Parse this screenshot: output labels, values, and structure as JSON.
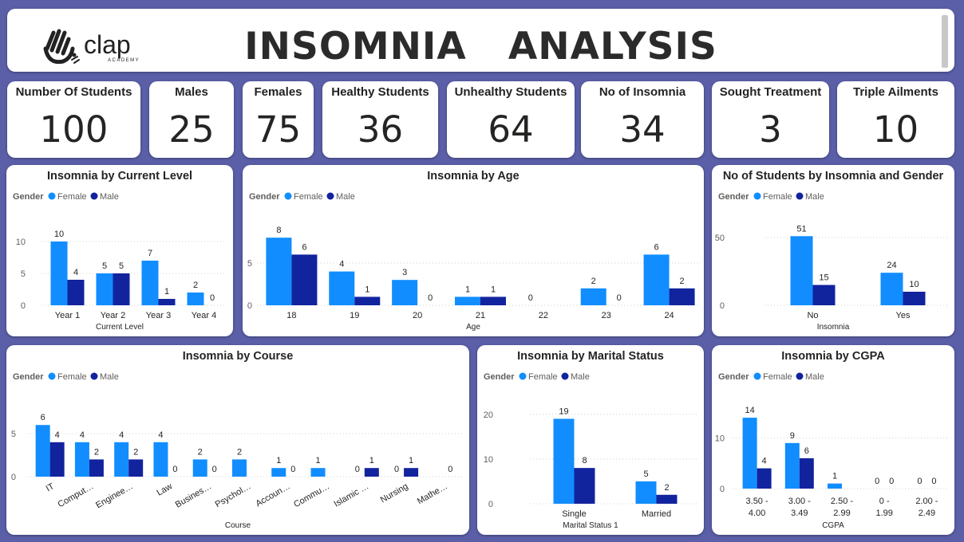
{
  "header": {
    "title": "INSOMNIA   ANALYSIS",
    "logo_text": "clap",
    "logo_subtext": "ACADEMY"
  },
  "kpis": [
    {
      "label": "Number Of Students",
      "value": "100"
    },
    {
      "label": "Males",
      "value": "25"
    },
    {
      "label": "Females",
      "value": "75"
    },
    {
      "label": "Healthy Students",
      "value": "36"
    },
    {
      "label": "Unhealthy Students",
      "value": "64"
    },
    {
      "label": "No of Insomnia",
      "value": "34"
    },
    {
      "label": "Sought Treatment",
      "value": "3"
    },
    {
      "label": "Triple Ailments",
      "value": "10"
    }
  ],
  "colors": {
    "female": "#118DFF",
    "male": "#12239E"
  },
  "legend": {
    "title": "Gender",
    "female": "Female",
    "male": "Male"
  },
  "chart_data": [
    {
      "id": "current_level",
      "type": "bar",
      "title": "Insomnia by Current Level",
      "xlabel": "Current Level",
      "ylabel": "",
      "ylim": [
        0,
        12
      ],
      "yticks": [
        0,
        5,
        10
      ],
      "categories": [
        "Year 1",
        "Year 2",
        "Year 3",
        "Year 4"
      ],
      "series": [
        {
          "name": "Female",
          "values": [
            10,
            5,
            7,
            2
          ]
        },
        {
          "name": "Male",
          "values": [
            4,
            5,
            1,
            0
          ]
        }
      ],
      "legend": "top-left",
      "grid": true
    },
    {
      "id": "age",
      "type": "bar",
      "title": "Insomnia by Age",
      "xlabel": "Age",
      "ylabel": "",
      "ylim": [
        0,
        10
      ],
      "yticks": [
        0,
        5
      ],
      "categories": [
        "18",
        "19",
        "20",
        "21",
        "22",
        "23",
        "24"
      ],
      "series": [
        {
          "name": "Female",
          "values": [
            8,
            4,
            3,
            1,
            0,
            2,
            6
          ]
        },
        {
          "name": "Male",
          "values": [
            6,
            1,
            0,
            1,
            null,
            0,
            2
          ]
        }
      ],
      "legend": "top-left",
      "grid": true
    },
    {
      "id": "gender",
      "type": "bar",
      "title": "No of Students by Insomnia and Gender",
      "xlabel": "Insomnia",
      "ylabel": "",
      "ylim": [
        0,
        60
      ],
      "yticks": [
        0,
        50
      ],
      "categories": [
        "No",
        "Yes"
      ],
      "series": [
        {
          "name": "Female",
          "values": [
            51,
            24
          ]
        },
        {
          "name": "Male",
          "values": [
            15,
            10
          ]
        }
      ],
      "legend": "top-left",
      "grid": true
    },
    {
      "id": "course",
      "type": "bar",
      "title": "Insomnia by Course",
      "xlabel": "Course",
      "ylabel": "",
      "ylim": [
        0,
        7.5
      ],
      "yticks": [
        0,
        5
      ],
      "categories": [
        "IT",
        "Comput…",
        "Enginee…",
        "Law",
        "Busines…",
        "Psychol…",
        "Accoun…",
        "Commu…",
        "Islamic …",
        "Nursing",
        "Mathe…"
      ],
      "series": [
        {
          "name": "Female",
          "values": [
            6,
            4,
            4,
            4,
            2,
            2,
            1,
            1,
            0,
            0,
            null
          ]
        },
        {
          "name": "Male",
          "values": [
            4,
            2,
            2,
            0,
            0,
            null,
            0,
            null,
            1,
            1,
            0
          ]
        }
      ],
      "legend": "top-left",
      "grid": true
    },
    {
      "id": "marital",
      "type": "bar",
      "title": "Insomnia by Marital Status",
      "xlabel": "Marital Status 1",
      "ylabel": "",
      "ylim": [
        0,
        23
      ],
      "yticks": [
        0,
        10,
        20
      ],
      "categories": [
        "Single",
        "Married"
      ],
      "series": [
        {
          "name": "Female",
          "values": [
            19,
            5
          ]
        },
        {
          "name": "Male",
          "values": [
            8,
            2
          ]
        }
      ],
      "legend": "top-left",
      "grid": true
    },
    {
      "id": "cgpa",
      "type": "bar",
      "title": "Insomnia by CGPA",
      "xlabel": "CGPA",
      "ylabel": "",
      "ylim": [
        0,
        17
      ],
      "yticks": [
        0,
        10
      ],
      "categories": [
        "3.50 - 4.00",
        "3.00 - 3.49",
        "2.50 - 2.99",
        "0 - 1.99",
        "2.00 - 2.49"
      ],
      "series": [
        {
          "name": "Female",
          "values": [
            14,
            9,
            1,
            0,
            0
          ]
        },
        {
          "name": "Male",
          "values": [
            4,
            6,
            null,
            0,
            0
          ]
        }
      ],
      "legend": "top-left",
      "grid": true
    }
  ]
}
